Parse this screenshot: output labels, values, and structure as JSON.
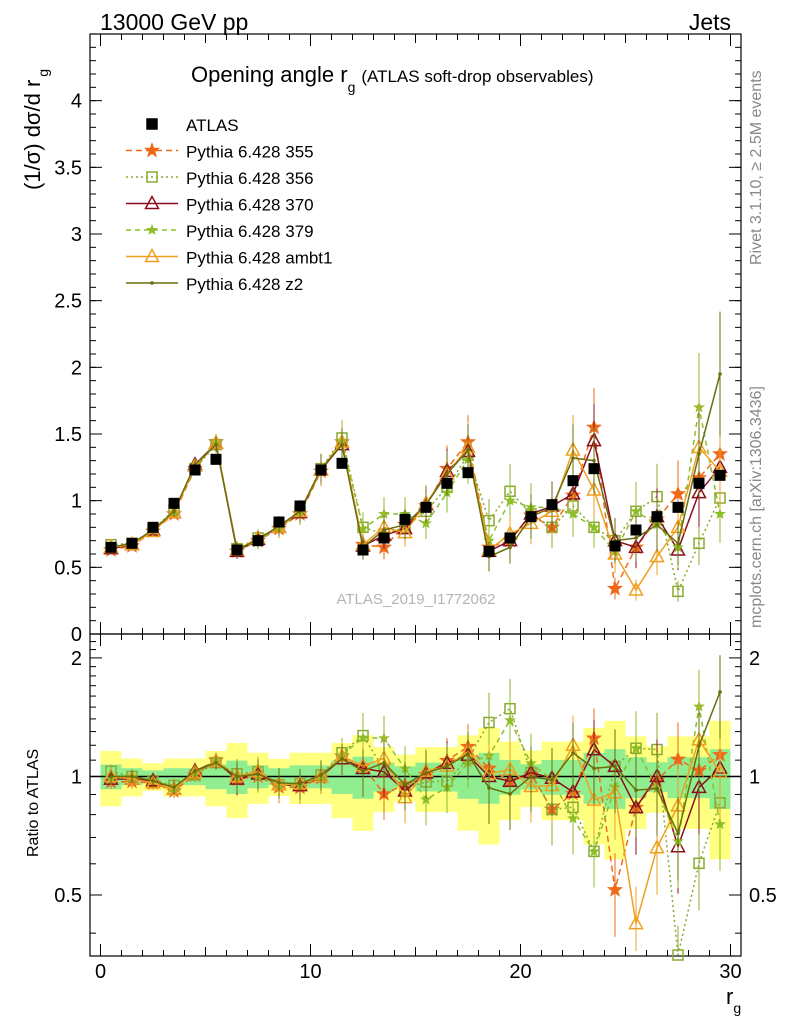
{
  "header": {
    "left": "13000 GeV pp",
    "right": "Jets"
  },
  "chart_data": {
    "type": "line",
    "title_main": "Opening angle r",
    "title_sub": "g",
    "title_rest": "(ATLAS soft-drop observables)",
    "ylabel_main": "(1/σ) dσ/d r",
    "ylabel_sub": "g",
    "ratio_ylabel": "Ratio to ATLAS",
    "xlabel_main": "r",
    "xlabel_sub": "g",
    "analysis_id": "ATLAS_2019_I1772062",
    "side_rivet": "Rivet 3.1.10, ≥ 2.5M events",
    "side_mcplots": "mcplots.cern.ch [arXiv:1306.3436]",
    "xlim": [
      -0.5,
      30.5
    ],
    "ylim": [
      0,
      4.5
    ],
    "ratio_ylim": [
      0.35,
      2.3
    ],
    "x_ticks": [
      "0",
      "10",
      "20",
      "30"
    ],
    "y_ticks": [
      "0",
      "0.5",
      "1",
      "1.5",
      "2",
      "2.5",
      "3",
      "3.5",
      "4"
    ],
    "ratio_ticks": [
      "0.5",
      "1",
      "2"
    ],
    "x": [
      0.5,
      1.5,
      2.5,
      3.5,
      4.5,
      5.5,
      6.5,
      7.5,
      8.5,
      9.5,
      10.5,
      11.5,
      12.5,
      13.5,
      14.5,
      15.5,
      16.5,
      17.5,
      18.5,
      19.5,
      20.5,
      21.5,
      22.5,
      23.5,
      24.5,
      25.5,
      26.5,
      27.5,
      28.5,
      29.5
    ],
    "data": {
      "name": "ATLAS",
      "values": [
        0.65,
        0.68,
        0.8,
        0.98,
        1.23,
        1.31,
        0.63,
        0.7,
        0.84,
        0.96,
        1.23,
        1.28,
        0.63,
        0.72,
        0.86,
        0.95,
        1.13,
        1.21,
        0.62,
        0.72,
        0.88,
        0.97,
        1.15,
        1.24,
        0.66,
        0.78,
        0.88,
        0.95,
        1.13,
        1.19
      ]
    },
    "series": [
      {
        "name": "Pythia 6.428 355",
        "color": "#ee6a1a",
        "marker": "star",
        "dash": "6,4",
        "values": [
          0.63,
          0.66,
          0.77,
          0.9,
          1.24,
          1.44,
          0.62,
          0.7,
          0.79,
          0.9,
          1.22,
          1.44,
          0.67,
          0.65,
          0.82,
          0.96,
          1.24,
          1.44,
          0.65,
          0.7,
          0.89,
          0.8,
          1.04,
          1.55,
          0.34,
          0.65,
          0.86,
          1.05,
          1.17,
          1.35
        ]
      },
      {
        "name": "Pythia 6.428 356",
        "color": "#8ca830",
        "marker": "square",
        "dash": "2,3",
        "values": [
          0.67,
          0.68,
          0.78,
          0.93,
          1.24,
          1.42,
          0.64,
          0.72,
          0.8,
          0.92,
          1.24,
          1.47,
          0.8,
          0.75,
          0.8,
          0.92,
          1.1,
          1.34,
          0.85,
          1.07,
          0.9,
          0.8,
          0.96,
          0.8,
          0.7,
          0.92,
          1.03,
          0.32,
          0.68,
          1.02
        ]
      },
      {
        "name": "Pythia 6.428 370",
        "color": "#8a0f1e",
        "marker": "triangle",
        "dash": "",
        "values": [
          0.64,
          0.67,
          0.78,
          0.91,
          1.27,
          1.43,
          0.62,
          0.71,
          0.8,
          0.91,
          1.23,
          1.42,
          0.66,
          0.74,
          0.79,
          0.97,
          1.22,
          1.37,
          0.62,
          0.7,
          0.9,
          0.96,
          1.05,
          1.45,
          0.7,
          0.65,
          0.88,
          0.63,
          1.06,
          1.25
        ]
      },
      {
        "name": "Pythia 6.428 379",
        "color": "#8cbe28",
        "marker": "smallstar",
        "dash": "5,4",
        "values": [
          0.64,
          0.68,
          0.78,
          0.91,
          1.25,
          1.44,
          0.63,
          0.7,
          0.8,
          0.91,
          1.23,
          1.45,
          0.79,
          0.9,
          0.9,
          0.83,
          1.06,
          1.31,
          0.7,
          1.0,
          0.95,
          0.95,
          0.9,
          0.8,
          0.62,
          0.92,
          0.82,
          0.65,
          1.7,
          0.9
        ]
      },
      {
        "name": "Pythia 6.428 ambt1",
        "color": "#f0a020",
        "marker": "triangle",
        "dash": "",
        "values": [
          0.65,
          0.67,
          0.77,
          0.91,
          1.26,
          1.43,
          0.63,
          0.72,
          0.8,
          0.92,
          1.23,
          1.44,
          0.67,
          0.8,
          0.76,
          0.98,
          1.2,
          1.4,
          0.63,
          0.75,
          0.83,
          0.92,
          1.38,
          1.08,
          0.6,
          0.33,
          0.58,
          0.8,
          1.4,
          1.22
        ]
      },
      {
        "name": "Pythia 6.428 z2",
        "color": "#6b6d0d",
        "marker": "dot",
        "dash": "",
        "values": [
          0.65,
          0.68,
          0.78,
          0.92,
          1.27,
          1.42,
          0.63,
          0.71,
          0.81,
          0.92,
          1.24,
          1.42,
          0.65,
          0.78,
          0.82,
          0.97,
          1.2,
          1.38,
          0.58,
          0.65,
          0.88,
          0.95,
          1.32,
          1.3,
          0.7,
          0.72,
          0.82,
          0.68,
          1.35,
          1.95
        ]
      }
    ],
    "legend_position": "top-left"
  }
}
